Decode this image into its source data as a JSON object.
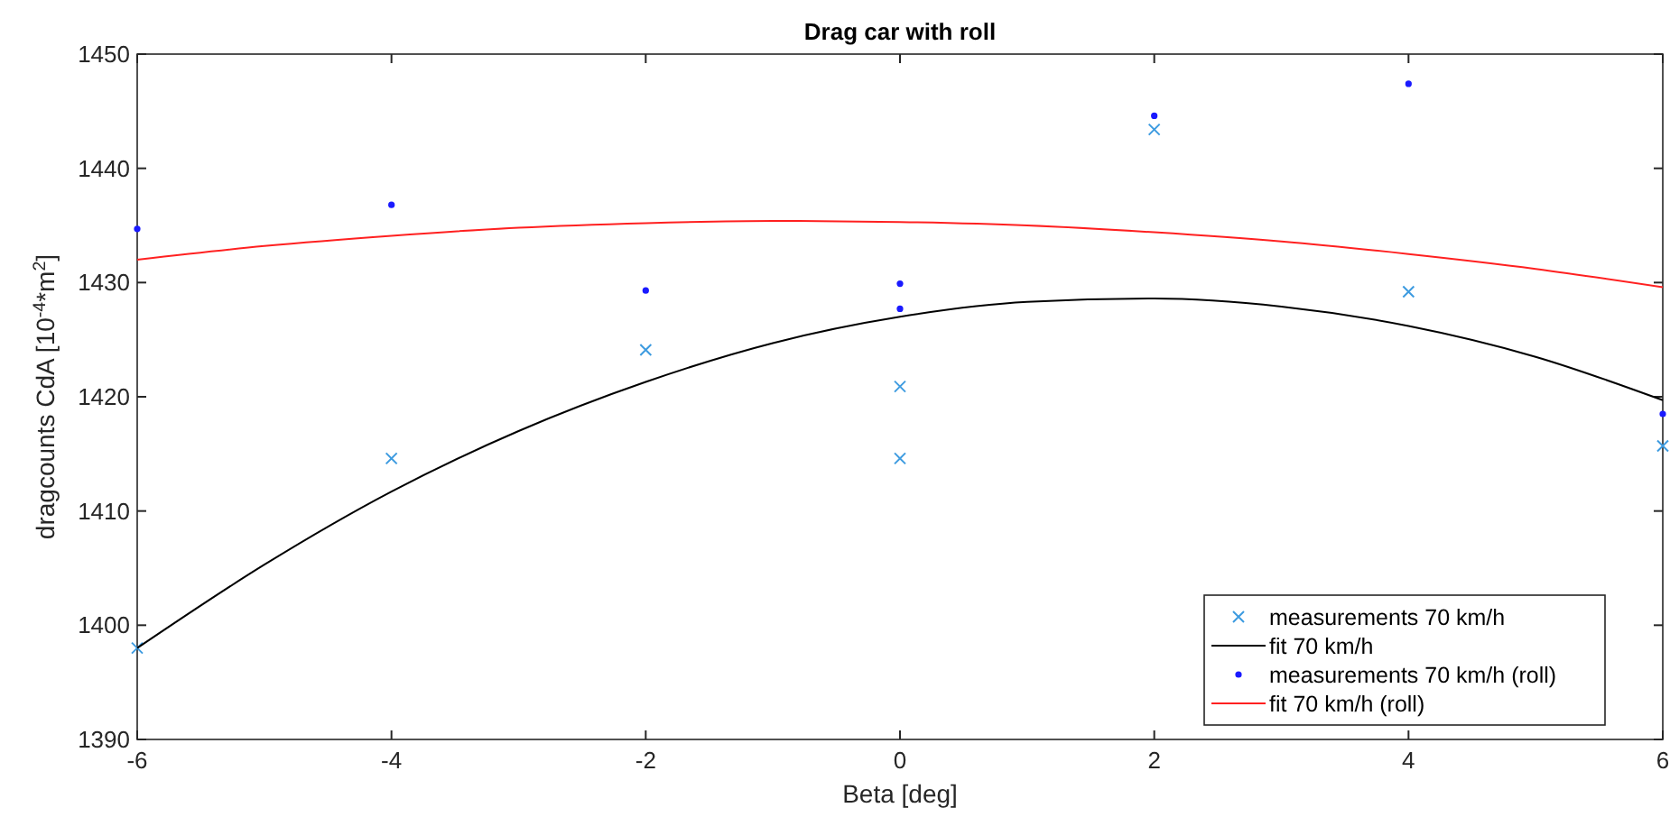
{
  "chart_data": {
    "type": "scatter",
    "title": "Drag car with roll",
    "xlabel": "Beta [deg]",
    "ylabel": "dragcounts CdA [10$^{-4}$*m$^{2}$]",
    "xlim": [
      -6,
      6
    ],
    "xticks": [
      -6,
      -4,
      -2,
      0,
      2,
      4,
      6
    ],
    "ylim": [
      1390,
      1450
    ],
    "yticks": [
      1390,
      1400,
      1410,
      1420,
      1430,
      1440,
      1450
    ],
    "grid": false,
    "legend": "bottom right",
    "series": [
      {
        "name": "measurements 70 km/h",
        "marker": "cross",
        "color": "#3d9be0",
        "x": [
          -6,
          -4,
          -2,
          0,
          0,
          2,
          4,
          6
        ],
        "values": [
          1398.0,
          1414.6,
          1424.1,
          1420.9,
          1414.6,
          1443.4,
          1429.2,
          1415.7
        ]
      },
      {
        "name": "fit 70 km/h",
        "type": "line",
        "color": "#000000",
        "line_style": "solid",
        "x": [
          -6,
          -5,
          -4,
          -3,
          -2,
          -1,
          0,
          1,
          2,
          3,
          4,
          5,
          6
        ],
        "values": [
          1398.0,
          1405.3,
          1411.7,
          1417.0,
          1421.3,
          1424.7,
          1427.0,
          1428.3,
          1428.6,
          1427.9,
          1426.2,
          1423.5,
          1419.7
        ]
      },
      {
        "name": "measurements 70 km/h (roll)",
        "marker": "circle",
        "color": "#1a1aff",
        "x": [
          -6,
          -4,
          -2,
          0,
          0,
          2,
          4,
          6
        ],
        "values": [
          1434.7,
          1436.8,
          1429.3,
          1429.9,
          1427.7,
          1444.6,
          1447.4,
          1418.5
        ]
      },
      {
        "name": "fit 70 km/h (roll)",
        "type": "line",
        "color": "#ff2020",
        "line_style": "solid",
        "x": [
          -6,
          -5,
          -4,
          -3,
          -2,
          -1,
          0,
          1,
          2,
          3,
          4,
          5,
          6
        ],
        "values": [
          1432.0,
          1433.2,
          1434.1,
          1434.8,
          1435.2,
          1435.4,
          1435.3,
          1435.0,
          1434.4,
          1433.6,
          1432.5,
          1431.2,
          1429.6
        ]
      }
    ]
  }
}
